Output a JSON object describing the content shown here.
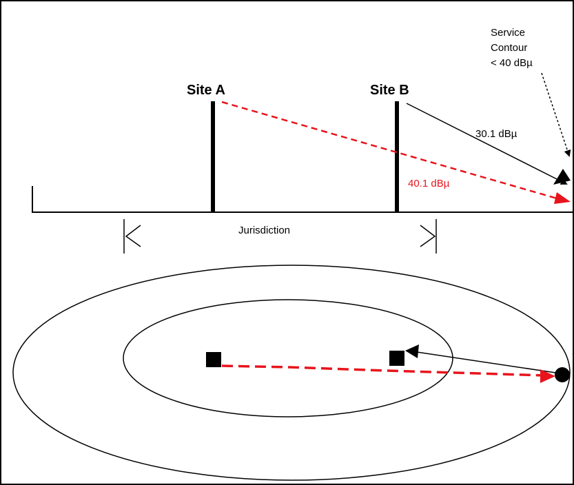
{
  "labels": {
    "site_a": "Site A",
    "site_b": "Site B",
    "service_contour_line1": "Service",
    "service_contour_line2": "Contour",
    "service_contour_line3": "< 40 dBµ",
    "signal_b": "30.1 dBµ",
    "signal_a": "40.1 dBµ",
    "jurisdiction": "Jurisdiction"
  },
  "colors": {
    "frame": "#000000",
    "line": "#000000",
    "red_path": "#e8141c",
    "background": "#ffffff"
  }
}
